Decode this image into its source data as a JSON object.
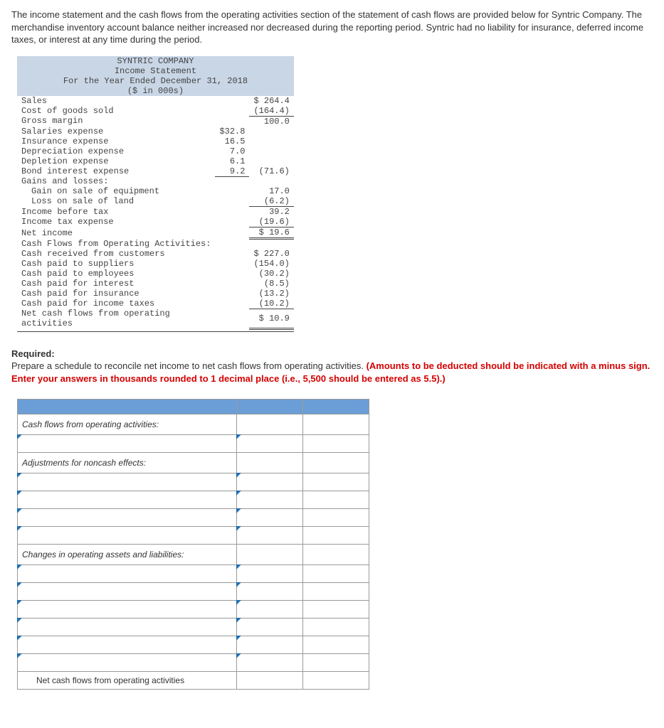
{
  "intro": "The income statement and the cash flows from the operating activities section of the statement of cash flows are provided below for Syntric Company. The merchandise inventory account balance neither increased nor decreased during the reporting period. Syntric had no liability for insurance, deferred income taxes, or interest at any time during the period.",
  "statement": {
    "company": "SYNTRIC COMPANY",
    "title": "Income Statement",
    "period": "For the Year Ended December 31, 2018",
    "units": "($ in 000s)",
    "rows": {
      "sales_label": "Sales",
      "sales_val": "$ 264.4",
      "cogs_label": "Cost of goods sold",
      "cogs_val": "(164.4)",
      "gm_label": "Gross margin",
      "gm_val": "100.0",
      "sal_label": "Salaries expense",
      "sal_val": "$32.8",
      "ins_label": "Insurance expense",
      "ins_val": "16.5",
      "dep_label": "Depreciation expense",
      "dep_val": "7.0",
      "depl_label": "Depletion expense",
      "depl_val": "6.1",
      "bond_label": "Bond interest expense",
      "bond_val": "9.2",
      "exp_total": "(71.6)",
      "gl_label": "Gains and losses:",
      "gain_label": "Gain on sale of equipment",
      "gain_val": "17.0",
      "loss_label": "Loss on sale of land",
      "loss_val": "(6.2)",
      "ibt_label": "Income before tax",
      "ibt_val": "39.2",
      "tax_label": "Income tax expense",
      "tax_val": "(19.6)",
      "ni_label": "Net income",
      "ni_val": "$  19.6",
      "cfo_head": "Cash Flows from Operating Activities:",
      "crc_label": "Cash received from customers",
      "crc_val": "$ 227.0",
      "cps_label": "Cash paid to suppliers",
      "cps_val": "(154.0)",
      "cpe_label": "Cash paid to employees",
      "cpe_val": "(30.2)",
      "cpi_label": "Cash paid for interest",
      "cpi_val": "(8.5)",
      "cpin_label": "Cash paid for insurance",
      "cpin_val": "(13.2)",
      "cpt_label": "Cash paid for income taxes",
      "cpt_val": "(10.2)",
      "netcfo1": "Net cash flows from operating",
      "netcfo2": "activities",
      "netcfo_val": "$  10.9"
    }
  },
  "required": {
    "head": "Required:",
    "text": "Prepare a schedule to reconcile net income to net cash flows from operating activities. ",
    "redtext": "(Amounts to be deducted should be indicated with a minus sign. Enter your answers in thousands rounded to 1 decimal place (i.e., 5,500 should be entered as 5.5).)"
  },
  "answer": {
    "sect1": "Cash flows from operating activities:",
    "sect2": "Adjustments for noncash effects:",
    "sect3": "Changes in operating assets and liabilities:",
    "lastrow": "Net cash flows from operating activities"
  }
}
